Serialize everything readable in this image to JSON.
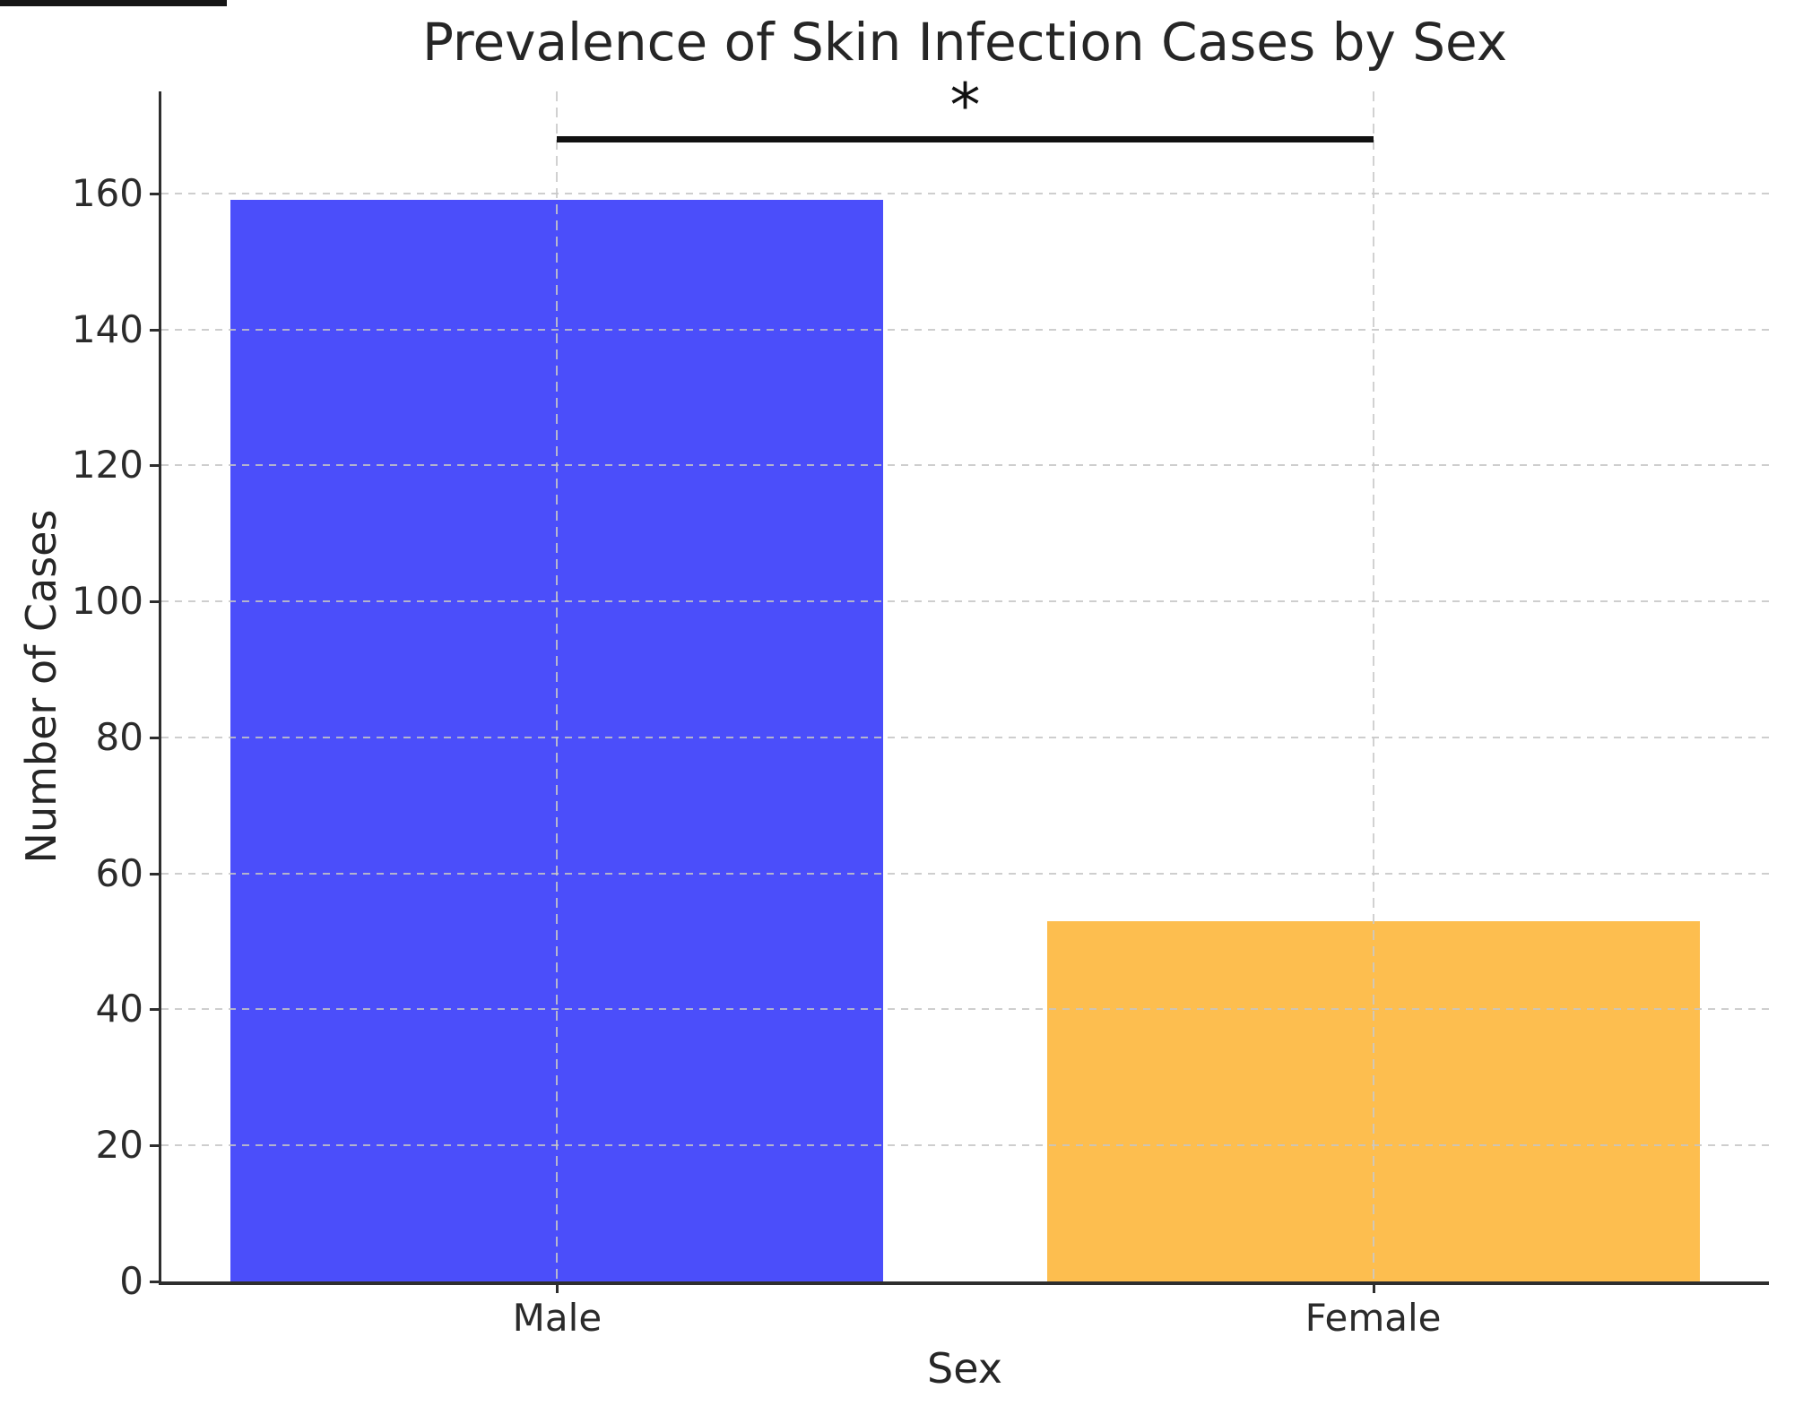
{
  "chart_data": {
    "type": "bar",
    "title": "Prevalence of Skin Infection Cases by Sex",
    "xlabel": "Sex",
    "ylabel": "Number of Cases",
    "categories": [
      "Male",
      "Female"
    ],
    "values": [
      159,
      53
    ],
    "bar_colors": [
      "#4B4EFA",
      "#FDBE4F"
    ],
    "ylim": [
      0,
      175
    ],
    "yticks": [
      0,
      20,
      40,
      60,
      80,
      100,
      120,
      140,
      160
    ],
    "grid": "dashed horizontal at y-ticks and dashed vertical at category centers",
    "legend": "none",
    "annotation": {
      "text": "*",
      "kind": "significance-line",
      "from_category": "Male",
      "to_category": "Female",
      "line_y_value": 168
    }
  },
  "colors": {
    "background": "#ffffff",
    "bar_male": "#4B4EFA",
    "bar_female": "#FDBE4F",
    "grid": "#c7c7c7",
    "spine": "#2e2e2e",
    "text": "#262626",
    "significance_line": "#111111"
  }
}
